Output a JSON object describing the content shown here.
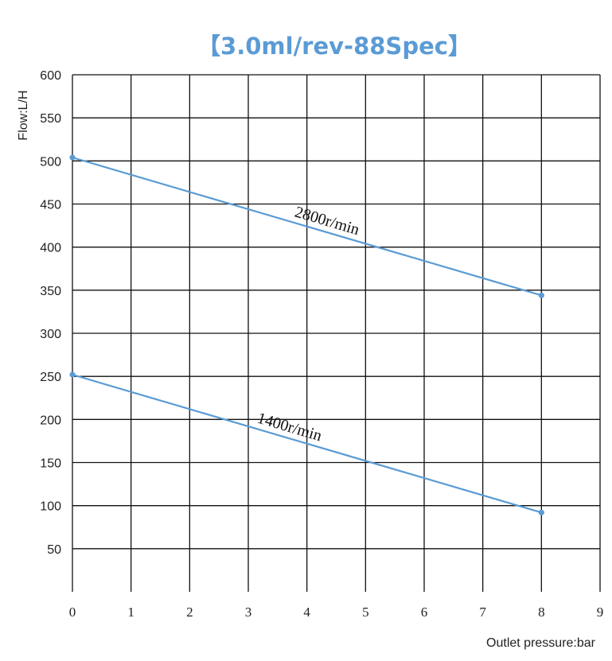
{
  "chart_data": {
    "type": "line",
    "title": "【3.0ml/rev-88Spec】",
    "xlabel": "Outlet pressure:bar",
    "ylabel": "Flow:L/H",
    "xlim": [
      0,
      9
    ],
    "ylim": [
      0,
      600
    ],
    "x_ticks": [
      "0",
      "1",
      "2",
      "3",
      "4",
      "5",
      "6",
      "7",
      "8",
      "9"
    ],
    "y_ticks": [
      "50",
      "100",
      "150",
      "200",
      "250",
      "300",
      "350",
      "400",
      "450",
      "500",
      "550",
      "600"
    ],
    "grid": true,
    "series": [
      {
        "name": "2800r/min",
        "x": [
          0,
          8
        ],
        "y": [
          504,
          344
        ]
      },
      {
        "name": "1400r/min",
        "x": [
          0,
          8
        ],
        "y": [
          252,
          92
        ]
      }
    ],
    "colors": {
      "title": "#5b9bd5",
      "series": "#5b9bd5",
      "grid": "#111111"
    }
  }
}
